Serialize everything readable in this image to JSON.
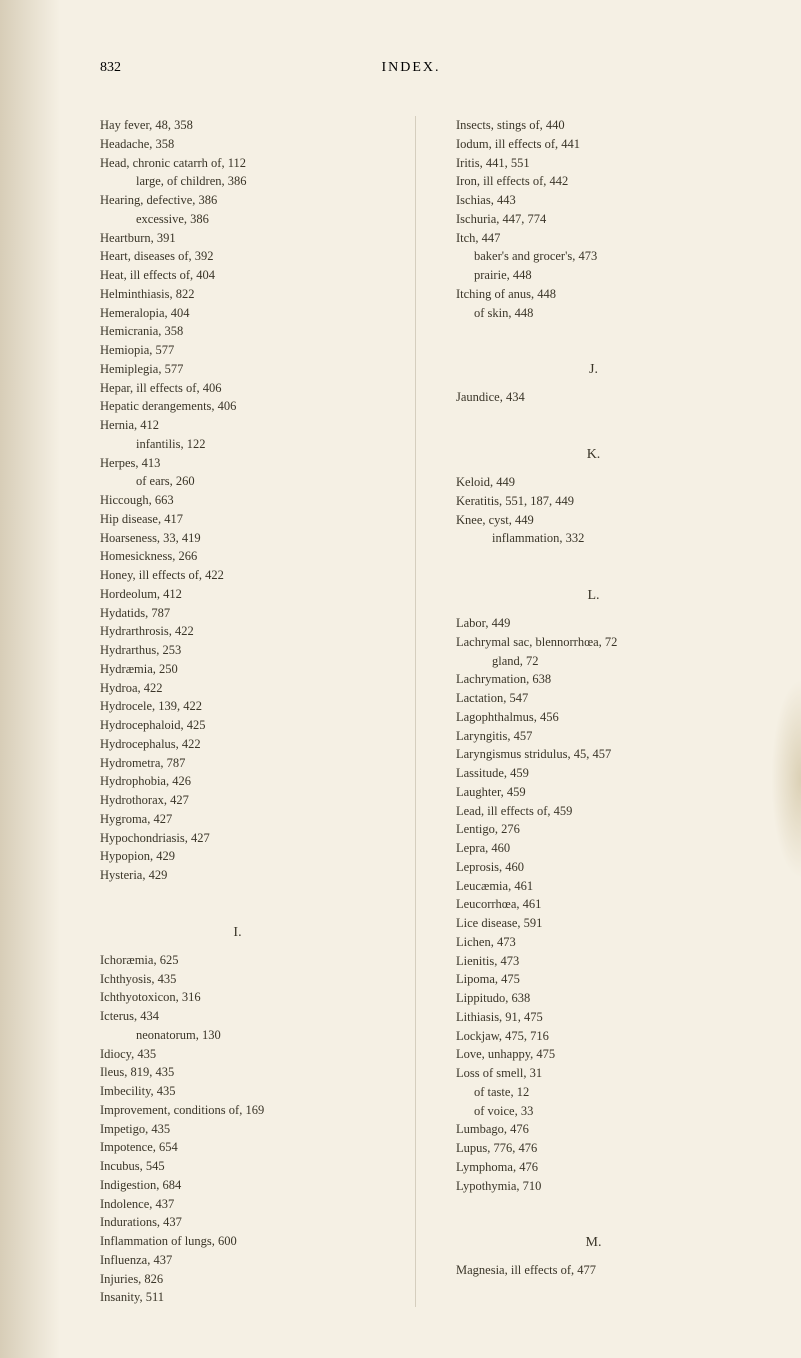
{
  "header": {
    "pageNumber": "832",
    "title": "INDEX."
  },
  "leftColumn": {
    "entries": [
      {
        "text": "Hay fever, 48, 358"
      },
      {
        "text": "Headache, 358"
      },
      {
        "text": "Head, chronic catarrh of, 112"
      },
      {
        "text": "large, of children, 386",
        "indent": 2
      },
      {
        "text": "Hearing, defective, 386"
      },
      {
        "text": "excessive, 386",
        "indent": 2
      },
      {
        "text": "Heartburn, 391"
      },
      {
        "text": "Heart, diseases of, 392"
      },
      {
        "text": "Heat, ill effects of, 404"
      },
      {
        "text": "Helminthiasis, 822"
      },
      {
        "text": "Hemeralopia, 404"
      },
      {
        "text": "Hemicrania, 358"
      },
      {
        "text": "Hemiopia, 577"
      },
      {
        "text": "Hemiplegia, 577"
      },
      {
        "text": "Hepar, ill effects of, 406"
      },
      {
        "text": "Hepatic derangements, 406"
      },
      {
        "text": "Hernia, 412"
      },
      {
        "text": "infantilis, 122",
        "indent": 2
      },
      {
        "text": "Herpes, 413"
      },
      {
        "text": "of ears, 260",
        "indent": 2
      },
      {
        "text": "Hiccough, 663"
      },
      {
        "text": "Hip disease, 417"
      },
      {
        "text": "Hoarseness, 33, 419"
      },
      {
        "text": "Homesickness, 266"
      },
      {
        "text": "Honey, ill effects of, 422"
      },
      {
        "text": "Hordeolum, 412"
      },
      {
        "text": "Hydatids, 787"
      },
      {
        "text": "Hydrarthrosis, 422"
      },
      {
        "text": "Hydrarthus, 253"
      },
      {
        "text": "Hydræmia, 250"
      },
      {
        "text": "Hydroa, 422"
      },
      {
        "text": "Hydrocele, 139, 422"
      },
      {
        "text": "Hydrocephaloid, 425"
      },
      {
        "text": "Hydrocephalus, 422"
      },
      {
        "text": "Hydrometra, 787"
      },
      {
        "text": "Hydrophobia, 426"
      },
      {
        "text": "Hydrothorax, 427"
      },
      {
        "text": "Hygroma, 427"
      },
      {
        "text": "Hypochondriasis, 427"
      },
      {
        "text": "Hypopion, 429"
      },
      {
        "text": "Hysteria, 429"
      }
    ],
    "sectionI": {
      "letter": "I.",
      "entries": [
        {
          "text": "Ichoræmia, 625"
        },
        {
          "text": "Ichthyosis, 435"
        },
        {
          "text": "Ichthyotoxicon, 316"
        },
        {
          "text": "Icterus, 434"
        },
        {
          "text": "neonatorum, 130",
          "indent": 2
        },
        {
          "text": "Idiocy, 435"
        },
        {
          "text": "Ileus, 819, 435"
        },
        {
          "text": "Imbecility, 435"
        },
        {
          "text": "Improvement, conditions of, 169"
        },
        {
          "text": "Impetigo, 435"
        },
        {
          "text": "Impotence, 654"
        },
        {
          "text": "Incubus, 545"
        },
        {
          "text": "Indigestion, 684"
        },
        {
          "text": "Indolence, 437"
        },
        {
          "text": "Indurations, 437"
        },
        {
          "text": "Inflammation of lungs, 600"
        },
        {
          "text": "Influenza, 437"
        },
        {
          "text": "Injuries, 826"
        },
        {
          "text": "Insanity, 511"
        }
      ]
    }
  },
  "rightColumn": {
    "topEntries": [
      {
        "text": "Insects, stings of, 440"
      },
      {
        "text": "Iodum, ill effects of, 441"
      },
      {
        "text": "Iritis, 441, 551"
      },
      {
        "text": "Iron, ill effects of, 442"
      },
      {
        "text": "Ischias, 443"
      },
      {
        "text": "Ischuria, 447, 774"
      },
      {
        "text": "Itch, 447"
      },
      {
        "text": "baker's and grocer's, 473",
        "indent": 1
      },
      {
        "text": "prairie, 448",
        "indent": 1
      },
      {
        "text": "Itching of anus, 448"
      },
      {
        "text": "of skin, 448",
        "indent": 1
      }
    ],
    "sectionJ": {
      "letter": "J.",
      "entries": [
        {
          "text": "Jaundice, 434"
        }
      ]
    },
    "sectionK": {
      "letter": "K.",
      "entries": [
        {
          "text": "Keloid, 449"
        },
        {
          "text": "Keratitis, 551, 187, 449"
        },
        {
          "text": "Knee, cyst, 449"
        },
        {
          "text": "inflammation, 332",
          "indent": 2
        }
      ]
    },
    "sectionL": {
      "letter": "L.",
      "entries": [
        {
          "text": "Labor, 449"
        },
        {
          "text": "Lachrymal sac, blennorrhœa, 72"
        },
        {
          "text": "gland, 72",
          "indent": 2
        },
        {
          "text": "Lachrymation, 638"
        },
        {
          "text": "Lactation, 547"
        },
        {
          "text": "Lagophthalmus, 456"
        },
        {
          "text": "Laryngitis, 457"
        },
        {
          "text": "Laryngismus stridulus, 45, 457"
        },
        {
          "text": "Lassitude, 459"
        },
        {
          "text": "Laughter, 459"
        },
        {
          "text": "Lead, ill effects of, 459"
        },
        {
          "text": "Lentigo, 276"
        },
        {
          "text": "Lepra, 460"
        },
        {
          "text": "Leprosis, 460"
        },
        {
          "text": "Leucæmia, 461"
        },
        {
          "text": "Leucorrhœa, 461"
        },
        {
          "text": "Lice disease, 591"
        },
        {
          "text": "Lichen, 473"
        },
        {
          "text": "Lienitis, 473"
        },
        {
          "text": "Lipoma, 475"
        },
        {
          "text": "Lippitudo, 638"
        },
        {
          "text": "Lithiasis, 91, 475"
        },
        {
          "text": "Lockjaw, 475, 716"
        },
        {
          "text": "Love, unhappy, 475"
        },
        {
          "text": "Loss of smell, 31"
        },
        {
          "text": "of taste, 12",
          "indent": 1
        },
        {
          "text": "of voice, 33",
          "indent": 1
        },
        {
          "text": "Lumbago, 476"
        },
        {
          "text": "Lupus, 776, 476"
        },
        {
          "text": "Lymphoma, 476"
        },
        {
          "text": "Lypothymia, 710"
        }
      ]
    },
    "sectionM": {
      "letter": "M.",
      "entries": [
        {
          "text": "Magnesia, ill effects of, 477"
        }
      ]
    }
  },
  "colors": {
    "background": "#f5f0e4",
    "text": "#3a3528",
    "divider": "#8a8068"
  }
}
